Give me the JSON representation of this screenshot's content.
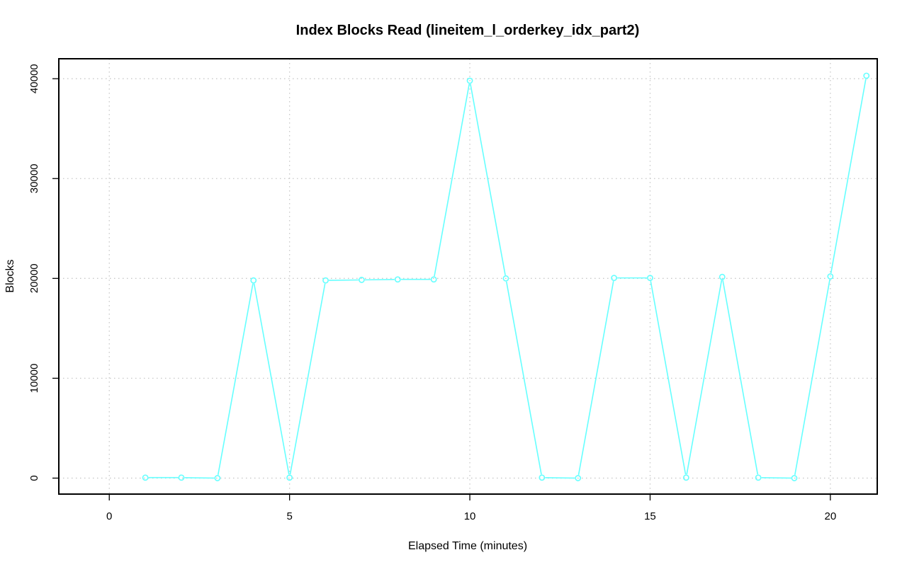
{
  "chart_data": {
    "type": "line",
    "title": "Index Blocks Read (lineitem_l_orderkey_idx_part2)",
    "xlabel": "Elapsed Time (minutes)",
    "ylabel": "Blocks",
    "xlim": [
      -1.4,
      21.3
    ],
    "ylim": [
      -1600,
      42000
    ],
    "x_ticks": [
      0,
      5,
      10,
      15,
      20
    ],
    "y_ticks": [
      0,
      10000,
      20000,
      30000,
      40000
    ],
    "x_tick_labels": [
      "0",
      "5",
      "10",
      "15",
      "20"
    ],
    "y_tick_labels": [
      "0",
      "10000",
      "20000",
      "30000",
      "40000"
    ],
    "grid": true,
    "series_color": "#66ffff",
    "series": [
      {
        "x": [
          1,
          2,
          3,
          4,
          5,
          6,
          7,
          8,
          9,
          10,
          11,
          12,
          13,
          14,
          15,
          16,
          17,
          18,
          19,
          20,
          21
        ],
        "values": [
          50,
          50,
          0,
          19800,
          50,
          19800,
          19850,
          19900,
          19900,
          39800,
          20000,
          50,
          0,
          20050,
          20050,
          50,
          20150,
          50,
          0,
          20200,
          40300
        ]
      }
    ]
  }
}
